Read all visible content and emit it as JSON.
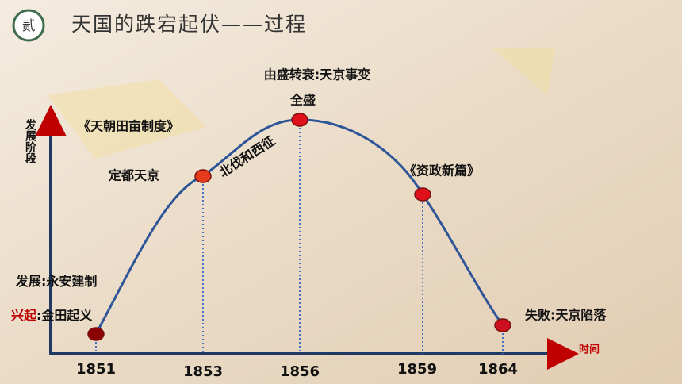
{
  "header": {
    "badge": "贰",
    "title": "天国的跌宕起伏——过程"
  },
  "axis": {
    "y_label": "发展阶段",
    "x_label": "时间"
  },
  "years": [
    "1851",
    "1853",
    "1856",
    "1859",
    "1864"
  ],
  "events": {
    "rise": {
      "label": "兴起",
      "text": ":金田起义"
    },
    "develop": {
      "label": "发展",
      "text": ":永安建制"
    },
    "capital": "定都天京",
    "land_system": "《天朝田亩制度》",
    "expeditions": "北伐和西征",
    "peak": "全盛",
    "decline": "由盛转衰:天京事变",
    "new_essay": "《资政新篇》",
    "fall": "失败:天京陷落"
  }
}
